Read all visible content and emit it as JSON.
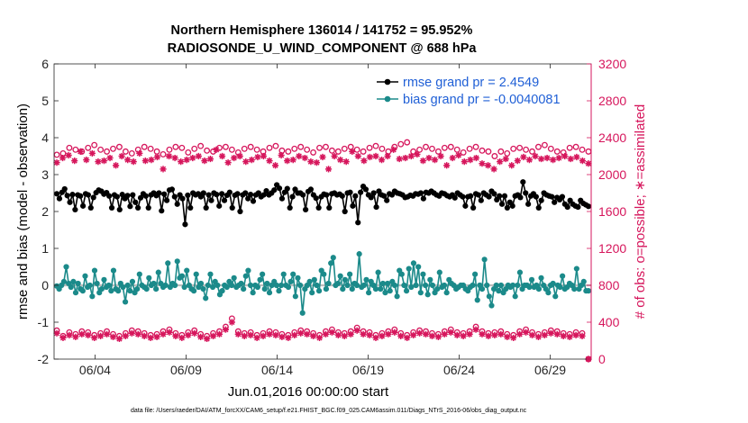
{
  "chart_data": {
    "type": "line",
    "title": "Northern Hemisphere 136014 / 141752 = 95.952%",
    "subtitle": "RADIOSONDE_U_WIND_COMPONENT @ 688 hPa",
    "xlabel": "Jun.01,2016 00:00:00 start",
    "ylabel_left": "rmse and bias (model - observation)",
    "ylabel_right": "# of obs: o=possible; ∗=assimilated",
    "footnote": "data file: /Users/raeder/DAI/ATM_forcXX/CAM6_setup/f.e21.FHIST_BGC.f09_025.CAM6assim.011/Diags_NTrS_2016-06/obs_diag_output.nc",
    "x_unit": "days since Jun.01,2016 00:00 (6-hourly bins)",
    "xlim": [
      0.75,
      30.25
    ],
    "x_ticks": [
      3,
      8,
      13,
      18,
      23,
      28
    ],
    "x_tick_labels": [
      "06/04",
      "06/09",
      "06/14",
      "06/19",
      "06/24",
      "06/29"
    ],
    "ylim_left": [
      -2,
      6
    ],
    "y_ticks_left": [
      -2,
      -1,
      0,
      1,
      2,
      3,
      4,
      5,
      6
    ],
    "ylim_right": [
      0,
      3200
    ],
    "y_ticks_right": [
      0,
      400,
      800,
      1200,
      1600,
      2000,
      2400,
      2800,
      3200
    ],
    "zero_line": 0,
    "legend": {
      "position": "top-right",
      "entries": [
        "rmse grand pr = 2.4549",
        "bias grand pr = -0.0040081"
      ]
    },
    "series": [
      {
        "name": "rmse",
        "axis": "left",
        "color": "#000000",
        "style": "line-dot",
        "values": [
          2.48,
          2.35,
          2.52,
          2.61,
          2.43,
          2.25,
          2.46,
          2.05,
          2.45,
          2.42,
          2.15,
          2.48,
          2.45,
          2.1,
          2.38,
          2.51,
          2.58,
          2.55,
          2.47,
          2.51,
          2.42,
          2.1,
          2.45,
          2.4,
          2.05,
          2.46,
          2.35,
          2.43,
          2.14,
          2.45,
          2.25,
          2.1,
          2.37,
          2.48,
          2.42,
          2.1,
          2.45,
          2.5,
          2.43,
          2.5,
          2.02,
          2.47,
          2.3,
          2.58,
          2.6,
          2.4,
          2.2,
          2.45,
          2.35,
          1.65,
          2.44,
          2.1,
          2.5,
          2.45,
          2.48,
          2.4,
          2.5,
          2.1,
          2.45,
          2.3,
          2.5,
          2.46,
          2.15,
          2.48,
          2.3,
          2.44,
          2.52,
          2.1,
          2.44,
          2.48,
          2.0,
          2.45,
          2.5,
          2.35,
          2.46,
          2.28,
          2.45,
          2.5,
          2.4,
          2.45,
          2.56,
          2.45,
          2.5,
          2.58,
          2.72,
          2.63,
          2.35,
          2.52,
          2.62,
          2.1,
          2.4,
          2.6,
          2.5,
          2.5,
          2.45,
          2.05,
          2.54,
          2.6,
          2.45,
          2.36,
          2.1,
          2.4,
          2.47,
          2.45,
          2.1,
          2.48,
          2.5,
          2.45,
          2.47,
          2.42,
          2.0,
          2.5,
          2.52,
          2.15,
          2.42,
          1.7,
          2.52,
          2.68,
          2.6,
          2.45,
          2.38,
          2.5,
          2.12,
          2.55,
          2.45,
          2.42,
          2.3,
          2.48,
          2.45,
          2.55,
          2.5,
          2.48,
          2.45,
          2.38,
          2.4,
          2.44,
          2.42,
          2.48,
          2.47,
          2.5,
          2.35,
          2.52,
          2.5,
          2.55,
          2.5,
          2.45,
          2.42,
          2.5,
          2.48,
          2.43,
          2.4,
          2.45,
          2.37,
          2.5,
          2.45,
          2.4,
          2.15,
          2.4,
          2.42,
          2.1,
          2.48,
          2.45,
          2.3,
          2.5,
          2.45,
          2.4,
          2.55,
          2.48,
          2.32,
          2.42,
          2.2,
          2.42,
          2.1,
          2.25,
          2.15,
          2.42,
          2.45,
          2.38,
          2.8,
          2.5,
          2.2,
          2.42,
          2.48,
          2.4,
          2.1,
          2.3,
          2.5,
          2.45,
          2.42,
          2.4,
          2.25,
          2.38,
          2.32,
          2.4,
          2.2,
          2.12,
          2.3,
          2.2,
          2.15,
          2.12,
          2.3,
          2.22,
          2.18,
          2.14
        ]
      },
      {
        "name": "bias",
        "axis": "left",
        "color": "#1b8a8a",
        "style": "line-dot",
        "values": [
          -0.02,
          -0.1,
          0.0,
          0.1,
          0.5,
          0.05,
          -0.05,
          0.1,
          -0.2,
          0.05,
          -0.1,
          -0.15,
          0.25,
          -0.05,
          0.0,
          -0.3,
          0.4,
          0.05,
          -0.2,
          -0.1,
          0.15,
          -0.05,
          0.0,
          -0.15,
          0.4,
          -0.1,
          -0.15,
          0.05,
          -0.05,
          -0.45,
          0.0,
          -0.15,
          0.1,
          -0.2,
          -0.1,
          0.3,
          0.0,
          -0.05,
          -0.1,
          0.2,
          0.0,
          0.05,
          -0.1,
          0.35,
          0.05,
          -0.05,
          0.0,
          0.6,
          -0.05,
          0.05,
          0.0,
          0.65,
          0.2,
          0.25,
          -0.05,
          0.4,
          0.0,
          -0.1,
          -0.15,
          0.3,
          -0.05,
          0.05,
          -0.1,
          -0.35,
          0.0,
          0.3,
          -0.05,
          0.1,
          0.0,
          -0.25,
          -0.15,
          0.0,
          -0.05,
          0.1,
          0.0,
          0.2,
          -0.05,
          0.0,
          0.05,
          -0.1,
          0.25,
          0.4,
          0.0,
          -0.2,
          0.0,
          -0.05,
          0.15,
          0.3,
          -0.1,
          0.05,
          -0.2,
          0.0,
          0.1,
          0.0,
          -0.15,
          0.0,
          0.3,
          0.0,
          -0.05,
          0.1,
          0.3,
          -0.3,
          0.2,
          0.0,
          -0.75,
          -0.1,
          0.0,
          0.1,
          -0.2,
          0.15,
          0.0,
          -0.15,
          0.4,
          0.3,
          -0.1,
          0.05,
          0.6,
          0.75,
          0.0,
          0.05,
          0.25,
          -0.1,
          0.15,
          0.0,
          0.3,
          -0.1,
          0.05,
          0.0,
          0.85,
          -0.05,
          0.0,
          0.15,
          -0.2,
          0.1,
          0.0,
          -0.1,
          0.35,
          -0.1,
          0.05,
          -0.2,
          0.05,
          -0.15,
          0.1,
          0.0,
          -0.3,
          0.4,
          0.3,
          0.0,
          -0.15,
          0.45,
          -0.05,
          0.6,
          0.0,
          0.5,
          -0.2,
          0.3,
          0.0,
          -0.25,
          0.15,
          0.0,
          -0.2,
          -0.1,
          0.35,
          -0.05,
          0.0,
          -0.2,
          0.15,
          0.05,
          0.0,
          -0.1,
          -0.05,
          0.0,
          0.0,
          -0.1,
          -0.15,
          -0.05,
          0.0,
          0.3,
          -0.4,
          0.0,
          -0.1,
          0.7,
          0.0,
          -0.3,
          -0.55,
          -0.1,
          0.0,
          -0.15,
          0.0,
          -0.2,
          -0.1,
          0.0,
          -0.05,
          0.0,
          -0.3,
          0.0,
          0.35,
          -0.1,
          0.0,
          0.0,
          -0.05,
          0.15,
          -0.05,
          0.0,
          -0.1,
          0.2,
          0.0,
          -0.1,
          -0.2,
          0.0,
          0.05,
          -0.3,
          0.0,
          -0.05,
          0.25,
          -0.1,
          -0.05,
          0.05,
          0.0,
          -0.1,
          0.45,
          -0.1,
          0.0,
          0.1,
          -0.15,
          -0.15
        ]
      },
      {
        "name": "obs possible (o)",
        "axis": "right",
        "color": "#d6165c",
        "style": "circle",
        "upper_values": [
          2215,
          2230,
          2290,
          2270,
          2250,
          2290,
          2320,
          2270,
          2250,
          2280,
          2300,
          2250,
          2230,
          2270,
          2300,
          2280,
          2250,
          2220,
          2270,
          2300,
          2290,
          2240,
          2280,
          2310,
          2260,
          2250,
          2290,
          2300,
          2270,
          2240,
          2280,
          2300,
          2270,
          2250,
          2290,
          2310,
          2260,
          2250,
          2280,
          2300,
          2270,
          2240,
          2290,
          2300,
          2260,
          2250,
          2280,
          2300,
          2270,
          2250,
          2290,
          2310,
          2280,
          2250,
          2300,
          2330,
          2350,
          2250,
          2270,
          2300,
          2280,
          2250,
          2290,
          2300,
          2270,
          2240,
          2280,
          2300,
          2260,
          2250,
          2200,
          2250,
          2230,
          2280,
          2290,
          2270,
          2250,
          2300,
          2320,
          2280,
          2250,
          2240,
          2290,
          2300,
          2270,
          2250
        ],
        "lower_values": [
          310,
          250,
          290,
          270,
          300,
          290,
          260,
          280,
          300,
          270,
          250,
          280,
          310,
          300,
          280,
          260,
          270,
          300,
          320,
          280,
          260,
          290,
          310,
          270,
          250,
          280,
          300,
          350,
          440,
          300,
          280,
          290,
          260,
          280,
          300,
          290,
          270,
          260,
          290,
          310,
          300,
          280,
          260,
          300,
          320,
          290,
          280,
          300,
          340,
          300,
          290,
          260,
          280,
          300,
          320,
          280,
          260,
          290,
          310,
          300,
          280,
          270,
          300,
          320,
          290,
          280,
          300,
          350,
          300,
          280,
          290,
          300,
          270,
          260,
          300,
          320,
          290,
          270,
          290,
          310,
          300,
          280,
          270,
          290,
          280,
          0
        ]
      },
      {
        "name": "obs assimilated (∗)",
        "axis": "right",
        "color": "#d6165c",
        "style": "asterisk",
        "upper_values": [
          2130,
          2180,
          2210,
          2150,
          2250,
          2160,
          2230,
          2140,
          2150,
          2180,
          2100,
          2200,
          2160,
          2140,
          2230,
          2150,
          2160,
          2190,
          2060,
          2200,
          2180,
          2140,
          2160,
          2180,
          2200,
          2150,
          2170,
          2270,
          2200,
          2130,
          2180,
          2200,
          2140,
          2160,
          2190,
          2200,
          2150,
          2100,
          2210,
          2150,
          2160,
          2200,
          2180,
          2140,
          2130,
          2190,
          2060,
          2200,
          2160,
          2140,
          2250,
          2200,
          2150,
          2190,
          2200,
          2160,
          2200,
          2270,
          2170,
          2180,
          2200,
          2220,
          2150,
          2180,
          2160,
          2200,
          2100,
          2180,
          2210,
          2140,
          2160,
          2180,
          2120,
          2100,
          2060,
          2140,
          2170,
          2100,
          2150,
          2190,
          2160,
          2200,
          2170,
          2180,
          2160,
          2180,
          2200,
          2170,
          2190,
          2150,
          2120
        ],
        "lower_values": [
          280,
          230,
          260,
          240,
          270,
          260,
          230,
          250,
          270,
          240,
          220,
          250,
          280,
          270,
          250,
          230,
          240,
          270,
          290,
          250,
          230,
          260,
          280,
          240,
          220,
          250,
          270,
          320,
          400,
          270,
          250,
          260,
          230,
          250,
          270,
          260,
          240,
          230,
          260,
          280,
          270,
          250,
          230,
          270,
          290,
          260,
          250,
          270,
          310,
          270,
          260,
          230,
          250,
          270,
          290,
          250,
          230,
          260,
          280,
          270,
          250,
          240,
          270,
          290,
          260,
          250,
          270,
          320,
          270,
          250,
          260,
          270,
          240,
          230,
          270,
          290,
          260,
          240,
          260,
          280,
          270,
          250,
          240,
          260,
          250,
          0
        ]
      }
    ]
  }
}
